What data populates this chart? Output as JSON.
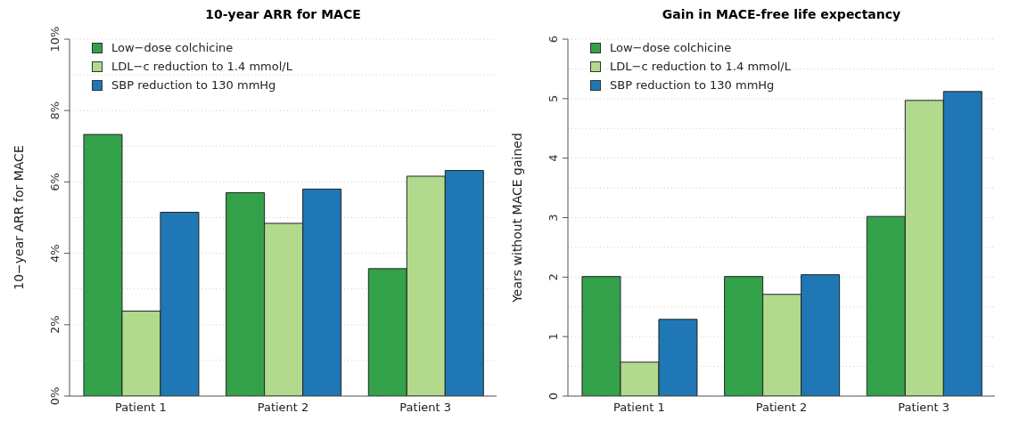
{
  "chart_data": [
    {
      "type": "bar",
      "title": "10-year ARR for MACE",
      "ylabel": "10−year ARR for MACE",
      "categories": [
        "Patient 1",
        "Patient 2",
        "Patient 3"
      ],
      "series": [
        {
          "name": "Low−dose colchicine",
          "color": "#33a14a",
          "values": [
            7.33,
            5.7,
            3.57
          ]
        },
        {
          "name": "LDL−c reduction to 1.4 mmol/L",
          "color": "#b2da8c",
          "values": [
            2.38,
            4.84,
            6.16
          ]
        },
        {
          "name": "SBP reduction to 130 mmHg",
          "color": "#1f78b5",
          "values": [
            5.15,
            5.8,
            6.32
          ]
        }
      ],
      "ylim": [
        0,
        10
      ],
      "yticks": [
        {
          "value": 0,
          "label": "0%"
        },
        {
          "value": 1,
          "label": null
        },
        {
          "value": 2,
          "label": "2%"
        },
        {
          "value": 3,
          "label": null
        },
        {
          "value": 4,
          "label": "4%"
        },
        {
          "value": 5,
          "label": null
        },
        {
          "value": 6,
          "label": "6%"
        },
        {
          "value": 7,
          "label": null
        },
        {
          "value": 8,
          "label": "8%"
        },
        {
          "value": 9,
          "label": null
        },
        {
          "value": 10,
          "label": "10%"
        }
      ],
      "grid": "y",
      "legend": "top left"
    },
    {
      "type": "bar",
      "title": "Gain in MACE-free life expectancy",
      "ylabel": "Years without MACE gained",
      "categories": [
        "Patient 1",
        "Patient 2",
        "Patient 3"
      ],
      "series": [
        {
          "name": "Low−dose colchicine",
          "color": "#33a14a",
          "values": [
            2.01,
            2.01,
            3.02
          ]
        },
        {
          "name": "LDL−c reduction to 1.4 mmol/L",
          "color": "#b2da8c",
          "values": [
            0.57,
            1.71,
            4.97
          ]
        },
        {
          "name": "SBP reduction to 130 mmHg",
          "color": "#1f78b5",
          "values": [
            1.29,
            2.04,
            5.12
          ]
        }
      ],
      "ylim": [
        0,
        6
      ],
      "yticks": [
        0,
        {
          "value": 0.5,
          "label": null
        },
        1,
        {
          "value": 1.5,
          "label": null
        },
        2,
        {
          "value": 2.5,
          "label": null
        },
        3,
        {
          "value": 3.5,
          "label": null
        },
        4,
        {
          "value": 4.5,
          "label": null
        },
        5,
        {
          "value": 5.5,
          "label": null
        },
        6
      ],
      "grid": "y",
      "legend": "top left"
    }
  ]
}
